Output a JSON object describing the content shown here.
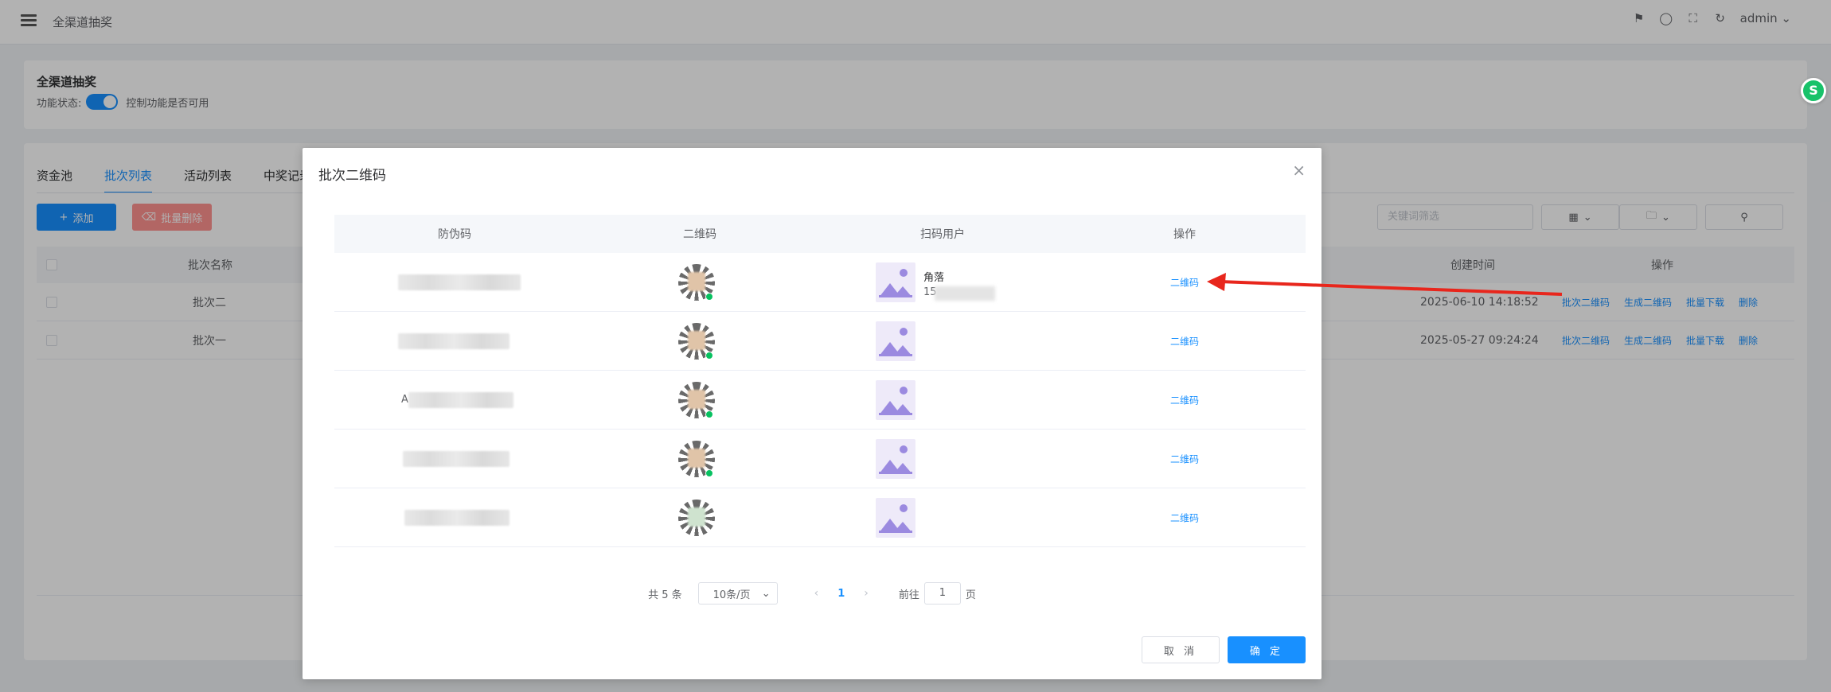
{
  "header": {
    "title": "全渠道抽奖",
    "user": "admin",
    "icons": [
      "bell-icon",
      "shirt-icon",
      "fullscreen-icon",
      "refresh-icon"
    ]
  },
  "settings_card": {
    "title": "全渠道抽奖",
    "status_label": "功能状态:",
    "toggle_on": true,
    "hint": "控制功能是否可用"
  },
  "tabs": [
    {
      "label": "资金池",
      "active": false
    },
    {
      "label": "批次列表",
      "active": true
    },
    {
      "label": "活动列表",
      "active": false
    },
    {
      "label": "中奖记录",
      "active": false
    }
  ],
  "toolbar": {
    "add_label": "添加",
    "batch_delete_label": "批量删除",
    "search_placeholder": "关键词筛选"
  },
  "bg_table": {
    "headers": {
      "name": "批次名称",
      "created": "创建时间",
      "ops": "操作"
    },
    "rows": [
      {
        "name": "批次二",
        "created": "2025-06-10 14:18:52"
      },
      {
        "name": "批次一",
        "created": "2025-05-27 09:24:24"
      }
    ],
    "row_ops": [
      "批次二维码",
      "生成二维码",
      "批量下载",
      "删除"
    ]
  },
  "modal": {
    "title": "批次二维码",
    "columns": [
      "防伪码",
      "二维码",
      "扫码用户",
      "操作"
    ],
    "rows": [
      {
        "code_prefix": "",
        "user_name": "角落",
        "user_phone": "15",
        "op": "二维码"
      },
      {
        "code_prefix": "",
        "user_name": "",
        "user_phone": "",
        "op": "二维码"
      },
      {
        "code_prefix": "A",
        "user_name": "",
        "user_phone": "",
        "op": "二维码"
      },
      {
        "code_prefix": "",
        "user_name": "",
        "user_phone": "",
        "op": "二维码"
      },
      {
        "code_prefix": "",
        "user_name": "",
        "user_phone": "",
        "op": "二维码"
      }
    ],
    "pagination": {
      "total_text": "共 5 条",
      "page_size": "10条/页",
      "current_page": "1",
      "goto_label": "前往",
      "goto_value": "1",
      "page_suffix": "页"
    },
    "cancel_label": "取 消",
    "ok_label": "确 定"
  },
  "annotation": {
    "color": "#e8261c"
  },
  "colors": {
    "primary": "#1890ff",
    "danger": "#ff7875",
    "overlay": "rgba(0,0,0,0.3)"
  }
}
